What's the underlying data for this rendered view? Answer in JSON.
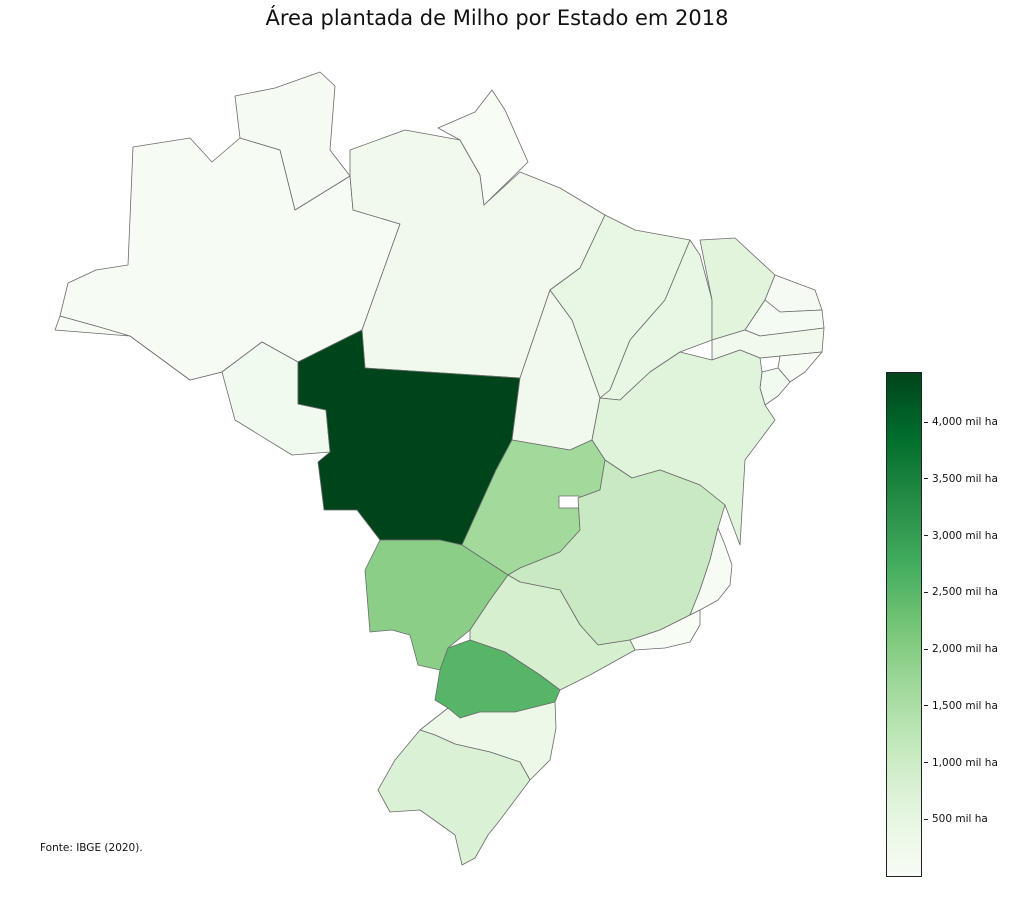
{
  "title": "Área plantada de Milho por Estado em 2018",
  "source": "Fonte: IBGE (2020).",
  "colors": {
    "scale_low": "#f7fcf5",
    "scale_high": "#00441b",
    "border": "#6b6b6b",
    "distrito_federal": "#ffffff"
  },
  "colorbar": {
    "unit": "mil ha",
    "min": 0,
    "max": 4450,
    "ticks": [
      {
        "value": 500,
        "label": "500 mil ha"
      },
      {
        "value": 1000,
        "label": "1,000 mil ha"
      },
      {
        "value": 1500,
        "label": "1,500 mil ha"
      },
      {
        "value": 2000,
        "label": "2,000 mil ha"
      },
      {
        "value": 2500,
        "label": "2,500 mil ha"
      },
      {
        "value": 3000,
        "label": "3,000 mil ha"
      },
      {
        "value": 3500,
        "label": "3,500 mil ha"
      },
      {
        "value": 4000,
        "label": "4,000 mil ha"
      }
    ]
  },
  "states": [
    {
      "uf": "AC",
      "value": 40
    },
    {
      "uf": "AM",
      "value": 30
    },
    {
      "uf": "RR",
      "value": 50
    },
    {
      "uf": "PA",
      "value": 200
    },
    {
      "uf": "AP",
      "value": 10
    },
    {
      "uf": "RO",
      "value": 180
    },
    {
      "uf": "MT",
      "value": 4450
    },
    {
      "uf": "TO",
      "value": 200
    },
    {
      "uf": "MA",
      "value": 450
    },
    {
      "uf": "PI",
      "value": 450
    },
    {
      "uf": "CE",
      "value": 600
    },
    {
      "uf": "RN",
      "value": 60
    },
    {
      "uf": "PB",
      "value": 80
    },
    {
      "uf": "PE",
      "value": 230
    },
    {
      "uf": "AL",
      "value": 40
    },
    {
      "uf": "SE",
      "value": 170
    },
    {
      "uf": "BA",
      "value": 650
    },
    {
      "uf": "GO",
      "value": 1650
    },
    {
      "uf": "DF",
      "value": 60
    },
    {
      "uf": "MG",
      "value": 1100
    },
    {
      "uf": "ES",
      "value": 20
    },
    {
      "uf": "RJ",
      "value": 10
    },
    {
      "uf": "MS",
      "value": 1950
    },
    {
      "uf": "SP",
      "value": 850
    },
    {
      "uf": "PR",
      "value": 2550
    },
    {
      "uf": "SC",
      "value": 350
    },
    {
      "uf": "RS",
      "value": 750
    }
  ]
}
